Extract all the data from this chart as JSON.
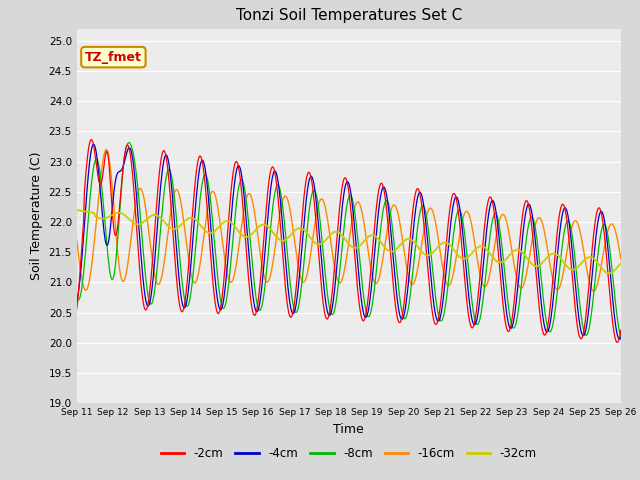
{
  "title": "Tonzi Soil Temperatures Set C",
  "xlabel": "Time",
  "ylabel": "Soil Temperature (C)",
  "ylim": [
    19.0,
    25.2
  ],
  "yticks": [
    19.0,
    19.5,
    20.0,
    20.5,
    21.0,
    21.5,
    22.0,
    22.5,
    23.0,
    23.5,
    24.0,
    24.5,
    25.0
  ],
  "xtick_labels": [
    "Sep 11",
    "Sep 12",
    "Sep 13",
    "Sep 14",
    "Sep 15",
    "Sep 16",
    "Sep 17",
    "Sep 18",
    "Sep 19",
    "Sep 20",
    "Sep 21",
    "Sep 22",
    "Sep 23",
    "Sep 24",
    "Sep 25",
    "Sep 26"
  ],
  "annotation_text": "TZ_fmet",
  "annotation_color": "#cc0000",
  "annotation_bg": "#ffffcc",
  "annotation_border": "#cc8800",
  "colors": {
    "-2cm": "#ff0000",
    "-4cm": "#0000cc",
    "-8cm": "#00bb00",
    "-16cm": "#ff8800",
    "-32cm": "#cccc00"
  },
  "legend_labels": [
    "-2cm",
    "-4cm",
    "-8cm",
    "-16cm",
    "-32cm"
  ],
  "bg_color": "#d8d8d8",
  "plot_bg_color": "#ececec"
}
